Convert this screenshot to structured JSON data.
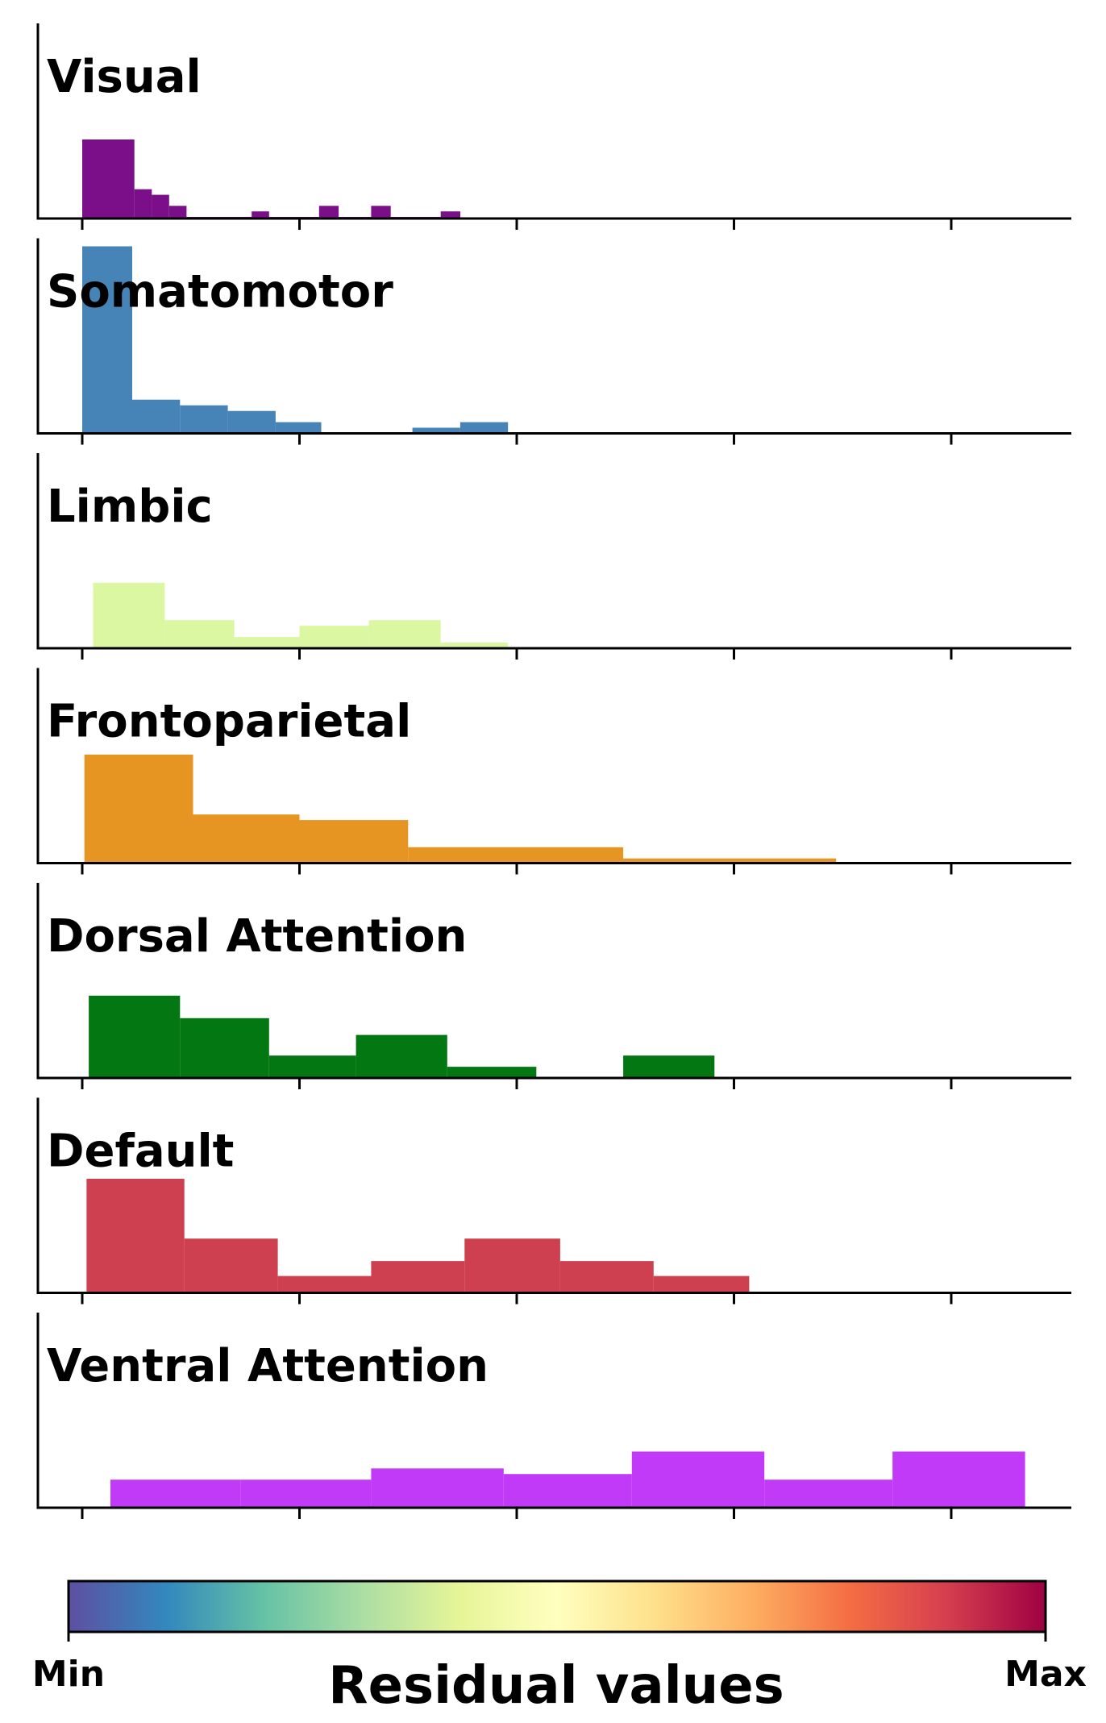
{
  "chart_data": {
    "type": "bar",
    "subtype": "stacked-panel histograms",
    "x_scale": "shared across panels, no tick labels printed",
    "y_scale": "not printed",
    "grid": false,
    "panels": [
      {
        "name": "Visual",
        "color": "#7b0f8a",
        "bins": [
          [
            0.0,
            0.24,
            1.0
          ],
          [
            0.24,
            0.32,
            0.37
          ],
          [
            0.32,
            0.4,
            0.3
          ],
          [
            0.4,
            0.48,
            0.16
          ],
          [
            0.48,
            0.78,
            0.02
          ],
          [
            0.78,
            0.86,
            0.09
          ],
          [
            0.86,
            1.09,
            0.02
          ],
          [
            1.09,
            1.18,
            0.16
          ],
          [
            1.18,
            1.33,
            0.02
          ],
          [
            1.33,
            1.42,
            0.16
          ],
          [
            1.42,
            1.65,
            0.02
          ],
          [
            1.65,
            1.74,
            0.09
          ]
        ]
      },
      {
        "name": "Somatomotor",
        "color": "#4683b7",
        "bins": [
          [
            0.0,
            0.23,
            1.0
          ],
          [
            0.23,
            0.45,
            0.18
          ],
          [
            0.45,
            0.67,
            0.15
          ],
          [
            0.67,
            0.89,
            0.12
          ],
          [
            0.89,
            1.1,
            0.06
          ],
          [
            1.1,
            1.52,
            0.005
          ],
          [
            1.52,
            1.74,
            0.03
          ],
          [
            1.74,
            1.96,
            0.06
          ]
        ]
      },
      {
        "name": "Limbic",
        "color": "#dcf7a1",
        "bins": [
          [
            0.05,
            0.38,
            0.35
          ],
          [
            0.38,
            0.7,
            0.15
          ],
          [
            0.7,
            1.0,
            0.06
          ],
          [
            1.0,
            1.32,
            0.12
          ],
          [
            1.32,
            1.65,
            0.15
          ],
          [
            1.65,
            1.96,
            0.03
          ]
        ]
      },
      {
        "name": "Frontoparietal",
        "color": "#e69522",
        "bins": [
          [
            0.01,
            0.51,
            0.58
          ],
          [
            0.51,
            1.0,
            0.26
          ],
          [
            1.0,
            1.5,
            0.23
          ],
          [
            1.5,
            2.49,
            0.085
          ],
          [
            2.49,
            3.47,
            0.025
          ]
        ]
      },
      {
        "name": "Dorsal Attention",
        "color": "#037712",
        "bins": [
          [
            0.03,
            0.45,
            0.44
          ],
          [
            0.45,
            0.86,
            0.32
          ],
          [
            0.86,
            1.26,
            0.12
          ],
          [
            1.26,
            1.68,
            0.23
          ],
          [
            1.68,
            2.09,
            0.06
          ],
          [
            2.09,
            2.49,
            0.005
          ],
          [
            2.49,
            2.91,
            0.12
          ]
        ]
      },
      {
        "name": "Default",
        "color": "#ce4050",
        "bins": [
          [
            0.02,
            0.47,
            0.61
          ],
          [
            0.47,
            0.9,
            0.29
          ],
          [
            0.9,
            1.33,
            0.09
          ],
          [
            1.33,
            1.76,
            0.17
          ],
          [
            1.76,
            2.2,
            0.29
          ],
          [
            2.2,
            2.63,
            0.17
          ],
          [
            2.63,
            3.07,
            0.09
          ]
        ]
      },
      {
        "name": "Ventral Attention",
        "color": "#c03af8",
        "bins": [
          [
            0.13,
            0.73,
            0.15
          ],
          [
            0.73,
            1.33,
            0.15
          ],
          [
            1.33,
            1.94,
            0.21
          ],
          [
            1.94,
            2.53,
            0.18
          ],
          [
            2.53,
            3.14,
            0.3
          ],
          [
            3.14,
            3.73,
            0.15
          ],
          [
            3.73,
            4.34,
            0.3
          ]
        ]
      }
    ],
    "colorbar": {
      "label": "Residual values",
      "min_label": "Min",
      "max_label": "Max",
      "colormap": [
        "#5e4fa2",
        "#3288bd",
        "#66c2a5",
        "#abdda4",
        "#e6f598",
        "#ffffbf",
        "#fee08b",
        "#fdae61",
        "#f46d43",
        "#d53e4f",
        "#9e0142"
      ]
    }
  }
}
